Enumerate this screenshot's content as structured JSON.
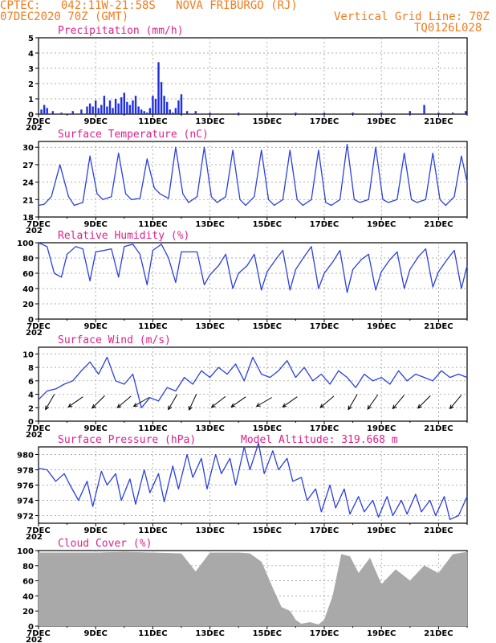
{
  "header": {
    "line1_left": "CPTEC:   042:11W-21:58S   NOVA FRIBURGO (RJ)",
    "line2_left": "07DEC2020 70Z (GMT)",
    "line2_right": "Vertical Grid Line: 70Z",
    "line3_right": "TQ0126L028",
    "model_altitude": "Model Altitude: 319.668  m"
  },
  "x_ticks": [
    "7DEC",
    "9DEC",
    "11DEC",
    "13DEC",
    "15DEC",
    "17DEC",
    "19DEC",
    "21DEC"
  ],
  "year_fragment": "202",
  "colors": {
    "line": "#2b3fe0",
    "bars": "#1f2fe0",
    "cloud": "#a9a9a9",
    "title": "#e0208a",
    "header": "#f07c1e",
    "grid": "#909090"
  },
  "chart_data": [
    {
      "id": "precip",
      "type": "bar",
      "title": "Precipitation (mm/h)",
      "x_unit": "days since 7DEC 00Z",
      "xlim": [
        0,
        15
      ],
      "ylim": [
        0,
        5
      ],
      "yticks": [
        "0",
        "1",
        "2",
        "3",
        "4",
        "5"
      ],
      "x": [
        0.1,
        0.2,
        0.3,
        0.5,
        0.8,
        1.2,
        1.5,
        1.7,
        1.8,
        1.9,
        2.0,
        2.1,
        2.2,
        2.3,
        2.4,
        2.5,
        2.6,
        2.7,
        2.8,
        2.9,
        3.0,
        3.1,
        3.2,
        3.3,
        3.4,
        3.5,
        3.6,
        3.7,
        3.8,
        3.9,
        4.0,
        4.1,
        4.2,
        4.3,
        4.4,
        4.5,
        4.6,
        4.7,
        4.8,
        4.9,
        5.0,
        5.2,
        5.5,
        6.0,
        7.0,
        8.0,
        9.0,
        10.0,
        11.0,
        12.0,
        13.0,
        13.5,
        14.0,
        14.5,
        14.95
      ],
      "values": [
        0.3,
        0.6,
        0.4,
        0.2,
        0.1,
        0.2,
        0.3,
        0.5,
        0.7,
        0.5,
        0.9,
        0.4,
        0.6,
        1.2,
        0.5,
        0.9,
        0.4,
        1.0,
        0.7,
        1.1,
        1.4,
        0.8,
        0.6,
        0.9,
        1.2,
        0.5,
        0.3,
        0.2,
        0.1,
        0.4,
        1.2,
        1.0,
        3.4,
        2.1,
        1.2,
        0.8,
        0.3,
        0.1,
        0.4,
        0.9,
        1.3,
        0.2,
        0.2,
        0.1,
        0.1,
        0.1,
        0.1,
        0.1,
        0.1,
        0.1,
        0.2,
        0.6,
        0.1,
        0.1,
        0.2
      ]
    },
    {
      "id": "temp",
      "type": "line",
      "title": "Surface Temperature (nC)",
      "x_unit": "days since 7DEC 00Z",
      "xlim": [
        0,
        15
      ],
      "ylim": [
        18,
        31
      ],
      "yticks": [
        "18",
        "21",
        "24",
        "27",
        "30"
      ],
      "x": [
        0,
        0.2,
        0.45,
        0.75,
        1.05,
        1.25,
        1.55,
        1.8,
        2.05,
        2.25,
        2.55,
        2.8,
        3.05,
        3.25,
        3.55,
        3.8,
        4.05,
        4.25,
        4.55,
        4.8,
        5.05,
        5.25,
        5.55,
        5.8,
        6.05,
        6.25,
        6.55,
        6.8,
        7.05,
        7.25,
        7.55,
        7.8,
        8.05,
        8.25,
        8.55,
        8.8,
        9.05,
        9.25,
        9.55,
        9.8,
        10.05,
        10.25,
        10.55,
        10.8,
        11.05,
        11.25,
        11.55,
        11.8,
        12.05,
        12.25,
        12.55,
        12.8,
        13.05,
        13.25,
        13.55,
        13.8,
        14.05,
        14.25,
        14.55,
        14.8,
        15.0
      ],
      "values": [
        20.0,
        20.2,
        21.5,
        27.0,
        21.5,
        20.0,
        20.5,
        28.5,
        22.0,
        21.0,
        21.5,
        29.0,
        22.0,
        21.0,
        21.2,
        28.0,
        23.0,
        22.0,
        21.2,
        30.0,
        22.0,
        20.5,
        21.5,
        30.0,
        21.5,
        20.5,
        21.5,
        29.5,
        21.0,
        20.0,
        21.5,
        29.5,
        21.0,
        20.0,
        21.0,
        29.5,
        21.0,
        20.0,
        21.0,
        29.5,
        20.5,
        20.0,
        21.0,
        30.5,
        21.0,
        20.5,
        21.0,
        30.0,
        21.0,
        20.5,
        21.0,
        29.0,
        21.0,
        20.5,
        21.0,
        29.0,
        21.0,
        20.0,
        21.5,
        28.5,
        24.0
      ]
    },
    {
      "id": "rh",
      "type": "line",
      "title": "Relative Humidity (%)",
      "x_unit": "days since 7DEC 00Z",
      "xlim": [
        0,
        15
      ],
      "ylim": [
        0,
        100
      ],
      "yticks": [
        "0",
        "20",
        "40",
        "60",
        "80",
        "100"
      ],
      "x": [
        0,
        0.3,
        0.55,
        0.8,
        1.0,
        1.3,
        1.55,
        1.8,
        2.0,
        2.3,
        2.55,
        2.8,
        3.0,
        3.3,
        3.55,
        3.8,
        4.0,
        4.3,
        4.55,
        4.8,
        5.0,
        5.3,
        5.55,
        5.8,
        6.0,
        6.3,
        6.55,
        6.8,
        7.0,
        7.3,
        7.55,
        7.8,
        8.0,
        8.3,
        8.55,
        8.8,
        9.0,
        9.3,
        9.55,
        9.8,
        10.0,
        10.3,
        10.55,
        10.8,
        11.0,
        11.3,
        11.55,
        11.8,
        12.0,
        12.3,
        12.55,
        12.8,
        13.0,
        13.3,
        13.55,
        13.8,
        14.0,
        14.3,
        14.55,
        14.8,
        15.0
      ],
      "values": [
        100,
        95,
        60,
        55,
        85,
        95,
        92,
        50,
        88,
        90,
        92,
        55,
        95,
        98,
        85,
        45,
        90,
        98,
        80,
        48,
        88,
        88,
        88,
        45,
        58,
        70,
        85,
        40,
        60,
        70,
        85,
        38,
        62,
        78,
        90,
        38,
        65,
        82,
        95,
        40,
        60,
        75,
        90,
        35,
        65,
        78,
        85,
        38,
        62,
        78,
        88,
        40,
        65,
        82,
        92,
        42,
        62,
        78,
        90,
        40,
        70
      ]
    },
    {
      "id": "wind",
      "type": "line",
      "title": "Surface Wind (m/s)",
      "x_unit": "days since 7DEC 00Z",
      "xlim": [
        0,
        15
      ],
      "ylim": [
        0,
        11
      ],
      "yticks": [
        "0",
        "2",
        "4",
        "6",
        "8",
        "10"
      ],
      "x": [
        0,
        0.3,
        0.6,
        0.9,
        1.2,
        1.5,
        1.8,
        2.1,
        2.4,
        2.7,
        3.0,
        3.3,
        3.6,
        3.9,
        4.2,
        4.5,
        4.8,
        5.1,
        5.4,
        5.7,
        6.0,
        6.3,
        6.6,
        6.9,
        7.2,
        7.5,
        7.8,
        8.1,
        8.4,
        8.7,
        9.0,
        9.3,
        9.6,
        9.9,
        10.2,
        10.5,
        10.8,
        11.1,
        11.4,
        11.7,
        12.0,
        12.3,
        12.6,
        12.9,
        13.2,
        13.5,
        13.8,
        14.1,
        14.4,
        14.7,
        15.0
      ],
      "values": [
        3.2,
        4.5,
        4.8,
        5.5,
        6.0,
        7.5,
        8.8,
        7.0,
        9.5,
        6.0,
        5.5,
        7.0,
        2.0,
        3.5,
        3.0,
        5.0,
        4.5,
        6.5,
        5.5,
        7.5,
        6.5,
        8.0,
        7.0,
        8.5,
        6.0,
        9.5,
        7.0,
        6.5,
        7.5,
        9.0,
        6.5,
        8.0,
        6.0,
        7.0,
        5.5,
        7.5,
        6.5,
        5.0,
        7.0,
        6.0,
        6.5,
        5.5,
        7.5,
        6.0,
        7.0,
        6.5,
        6.0,
        7.5,
        6.5,
        7.0,
        6.5
      ],
      "arrow_x": [
        0.4,
        1.3,
        2.1,
        3.0,
        3.6,
        4.7,
        5.4,
        6.3,
        7.0,
        7.9,
        8.8,
        10.1,
        11.0,
        11.7,
        12.6,
        13.5,
        14.6
      ],
      "arrow_dir_deg": [
        60,
        35,
        45,
        40,
        30,
        60,
        65,
        38,
        35,
        30,
        35,
        40,
        60,
        55,
        50,
        45,
        50
      ]
    },
    {
      "id": "pres",
      "type": "line",
      "title": "Surface Pressure (hPa)",
      "x_unit": "days since 7DEC 00Z",
      "xlim": [
        0,
        15
      ],
      "ylim": [
        971,
        981
      ],
      "yticks": [
        "972",
        "974",
        "976",
        "978",
        "980"
      ],
      "x": [
        0,
        0.3,
        0.6,
        0.9,
        1.1,
        1.4,
        1.7,
        1.9,
        2.2,
        2.4,
        2.7,
        2.9,
        3.2,
        3.4,
        3.7,
        3.9,
        4.2,
        4.4,
        4.7,
        4.9,
        5.2,
        5.4,
        5.7,
        5.9,
        6.2,
        6.4,
        6.7,
        6.9,
        7.2,
        7.4,
        7.7,
        7.9,
        8.2,
        8.4,
        8.7,
        8.9,
        9.2,
        9.4,
        9.7,
        9.9,
        10.2,
        10.4,
        10.7,
        10.9,
        11.2,
        11.4,
        11.7,
        11.9,
        12.2,
        12.4,
        12.7,
        12.9,
        13.2,
        13.4,
        13.7,
        13.9,
        14.2,
        14.4,
        14.7,
        15.0
      ],
      "values": [
        978.2,
        978.0,
        976.5,
        977.5,
        976.0,
        974.0,
        976.5,
        973.2,
        977.8,
        976.0,
        977.5,
        974.0,
        976.8,
        973.5,
        978.0,
        975.0,
        977.5,
        973.8,
        978.5,
        975.5,
        980.0,
        977.0,
        979.5,
        975.5,
        980.0,
        977.5,
        979.5,
        976.0,
        981.0,
        978.0,
        981.5,
        977.5,
        980.5,
        978.0,
        979.5,
        976.5,
        977.0,
        974.0,
        975.5,
        972.5,
        976.0,
        973.0,
        975.5,
        972.2,
        974.5,
        972.5,
        974.0,
        971.8,
        974.5,
        972.0,
        974.0,
        972.2,
        974.8,
        972.5,
        974.0,
        972.0,
        974.5,
        971.5,
        972.0,
        974.5
      ]
    },
    {
      "id": "cloud",
      "type": "area",
      "title": "Cloud Cover (%)",
      "x_unit": "days since 7DEC 00Z",
      "xlim": [
        0,
        15
      ],
      "ylim": [
        0,
        100
      ],
      "yticks": [
        "0",
        "20",
        "40",
        "60",
        "80",
        "100"
      ],
      "x": [
        0,
        1.0,
        2.0,
        3.0,
        4.0,
        5.0,
        5.5,
        6.0,
        7.0,
        7.4,
        7.8,
        8.2,
        8.5,
        8.8,
        9.0,
        9.2,
        9.5,
        9.8,
        10.0,
        10.3,
        10.6,
        10.9,
        11.2,
        11.6,
        12.0,
        12.5,
        13.0,
        13.5,
        14.0,
        14.5,
        15.0
      ],
      "values": [
        97,
        97,
        97,
        98,
        97,
        96,
        72,
        97,
        97,
        96,
        85,
        50,
        25,
        20,
        8,
        3,
        5,
        2,
        8,
        40,
        95,
        92,
        70,
        90,
        55,
        75,
        60,
        80,
        70,
        95,
        98
      ]
    }
  ]
}
